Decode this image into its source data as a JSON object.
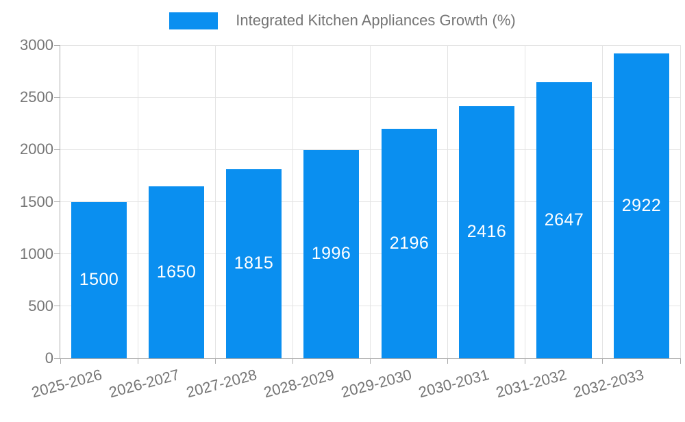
{
  "legend": {
    "label": "Integrated Kitchen Appliances Growth (%)"
  },
  "chart_data": {
    "type": "bar",
    "title": "Integrated Kitchen Appliances Growth (%)",
    "categories": [
      "2025-2026",
      "2026-2027",
      "2027-2028",
      "2028-2029",
      "2029-2030",
      "2030-2031",
      "2031-2032",
      "2032-2033"
    ],
    "values": [
      1500,
      1650,
      1815,
      1996,
      2196,
      2416,
      2647,
      2922
    ],
    "xlabel": "",
    "ylabel": "",
    "ylim": [
      0,
      3000
    ],
    "yticks": [
      0,
      500,
      1000,
      1500,
      2000,
      2500,
      3000
    ],
    "grid": true,
    "legend_position": "top",
    "x_label_rotation_deg": -15,
    "colors": {
      "bar": "#0a8ff0",
      "bar_label": "#ffffff",
      "axis_text": "#757575",
      "grid_line": "#e3e3e3",
      "axis_line": "#aaaaaa",
      "background": "#ffffff"
    }
  }
}
